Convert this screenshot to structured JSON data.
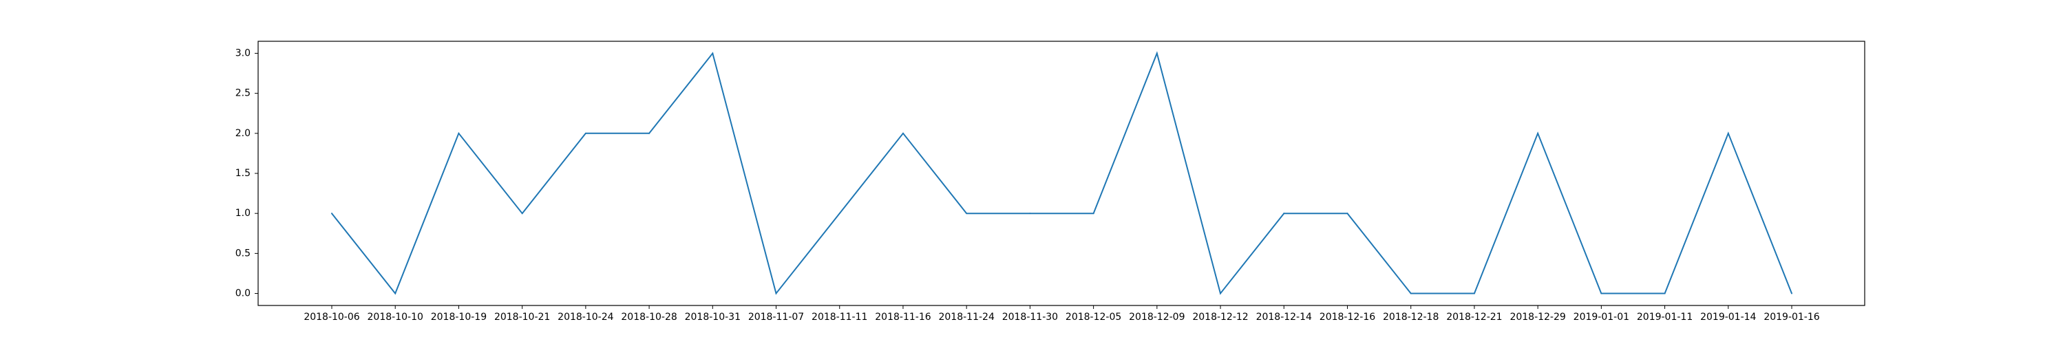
{
  "chart_data": {
    "type": "line",
    "title": "",
    "xlabel": "",
    "ylabel": "",
    "grid": false,
    "legend": "none",
    "x": [
      "2018-10-06",
      "2018-10-10",
      "2018-10-19",
      "2018-10-21",
      "2018-10-24",
      "2018-10-28",
      "2018-10-31",
      "2018-11-07",
      "2018-11-11",
      "2018-11-16",
      "2018-11-24",
      "2018-11-30",
      "2018-12-05",
      "2018-12-09",
      "2018-12-12",
      "2018-12-14",
      "2018-12-16",
      "2018-12-18",
      "2018-12-21",
      "2018-12-29",
      "2019-01-01",
      "2019-01-11",
      "2019-01-14",
      "2019-01-16"
    ],
    "series": [
      {
        "values": [
          1,
          0,
          2,
          1,
          2,
          2,
          3,
          0,
          1,
          2,
          1,
          1,
          1,
          3,
          0,
          1,
          1,
          0,
          0,
          2,
          0,
          0,
          2,
          0
        ],
        "color": "#1f77b4"
      }
    ],
    "ylim": [
      -0.15,
      3.15
    ],
    "yticks": [
      "0.0",
      "0.5",
      "1.0",
      "1.5",
      "2.0",
      "2.5",
      "3.0"
    ]
  }
}
